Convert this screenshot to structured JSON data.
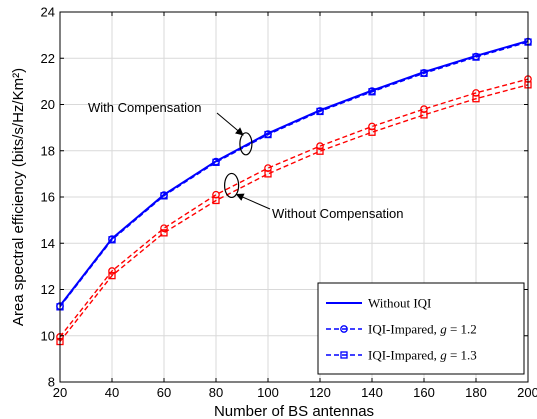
{
  "chart_data": {
    "type": "line",
    "xlabel": "Number of BS antennas",
    "ylabel": "Area spectral efficiency (bits/s/Hz/Km²)",
    "xlim": [
      20,
      200
    ],
    "ylim": [
      8,
      24
    ],
    "xticks": [
      20,
      40,
      60,
      80,
      100,
      120,
      140,
      160,
      180,
      200
    ],
    "yticks": [
      8,
      10,
      12,
      14,
      16,
      18,
      20,
      22,
      24
    ],
    "grid": true,
    "legend_position": "bottom-right",
    "x": [
      20,
      40,
      60,
      80,
      100,
      120,
      140,
      160,
      180,
      200
    ],
    "series": [
      {
        "name": "Without IQI",
        "marker": "none",
        "color": "#0000ff",
        "dash": "solid",
        "values": [
          11.3,
          14.2,
          16.1,
          17.55,
          18.75,
          19.75,
          20.6,
          21.4,
          22.1,
          22.75
        ]
      },
      {
        "name": "IQI-Impared, g = 1.2",
        "marker": "circle",
        "color": "#0000ff",
        "dash": "dashed",
        "values": [
          11.28,
          14.18,
          16.08,
          17.53,
          18.72,
          19.72,
          20.58,
          21.37,
          22.07,
          22.72
        ]
      },
      {
        "name": "IQI-Impared, g = 1.3",
        "marker": "square",
        "color": "#0000ff",
        "dash": "dashed",
        "values": [
          11.25,
          14.15,
          16.05,
          17.5,
          18.7,
          19.7,
          20.55,
          21.35,
          22.05,
          22.7
        ]
      },
      {
        "name": "",
        "marker": "circle",
        "color": "#ff0000",
        "dash": "dashed",
        "values": [
          9.95,
          12.8,
          14.65,
          16.1,
          17.25,
          18.2,
          19.05,
          19.8,
          20.5,
          21.1
        ]
      },
      {
        "name": "",
        "marker": "square",
        "color": "#ff0000",
        "dash": "dashed",
        "values": [
          9.75,
          12.6,
          14.45,
          15.85,
          17.0,
          17.98,
          18.8,
          19.55,
          20.25,
          20.85
        ]
      }
    ],
    "legend": [
      {
        "name": "Without IQI",
        "label": "Without IQI",
        "label_g": ""
      },
      {
        "name": "IQI-Impared, g = 1.2",
        "label": "IQI-Impared, ",
        "label_g": "g = 1.2"
      },
      {
        "name": "IQI-Impared, g = 1.3",
        "label": "IQI-Impared, ",
        "label_g": "g = 1.3"
      }
    ],
    "annotations": [
      {
        "text": "With Compensation",
        "target_x": 91.5,
        "target_y": 18.3
      },
      {
        "text": "Without Compensation",
        "target_x": 86,
        "target_y": 16.5
      }
    ]
  }
}
